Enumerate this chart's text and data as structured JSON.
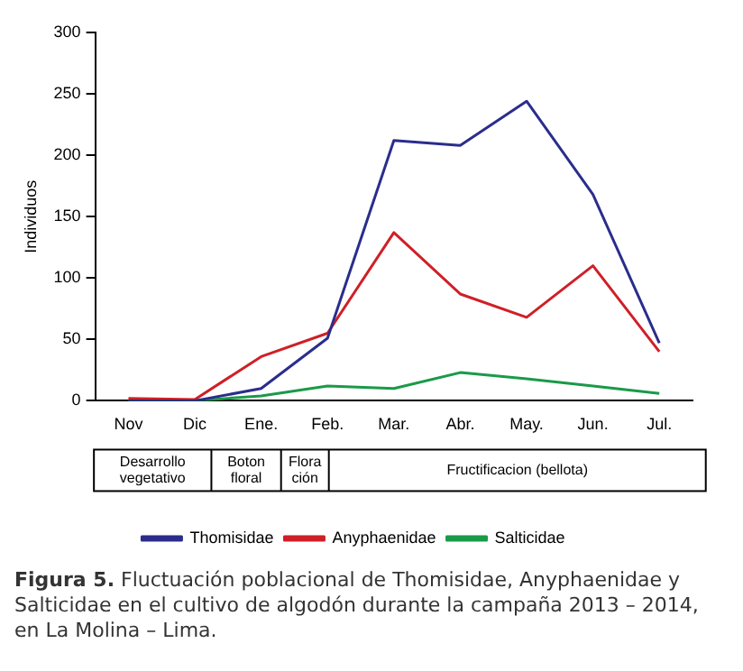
{
  "chart_data": {
    "type": "line",
    "ylabel": "Individuos",
    "categories": [
      "Nov",
      "Dic",
      "Ene.",
      "Feb.",
      "Mar.",
      "Abr.",
      "May.",
      "Jun.",
      "Jul."
    ],
    "series": [
      {
        "name": "Thomisidae",
        "color": "#2b2d8c",
        "values": [
          0,
          0,
          10,
          51,
          212,
          208,
          244,
          168,
          47
        ]
      },
      {
        "name": "Anyphaenidae",
        "color": "#d01f27",
        "values": [
          2,
          1,
          36,
          55,
          137,
          87,
          68,
          110,
          40
        ]
      },
      {
        "name": "Salticidae",
        "color": "#1a9a48",
        "values": [
          0,
          0,
          4,
          12,
          10,
          23,
          18,
          12,
          6
        ]
      }
    ],
    "ylim": [
      0,
      300
    ],
    "yticks": [
      0,
      50,
      100,
      150,
      200,
      250,
      300
    ],
    "grid": false,
    "legend": "bottom",
    "marker": "none",
    "line_style": "solid",
    "annotations": [
      "Desarrollo vegetativo",
      "Boton floral",
      "Floración",
      "Fructificacion (bellota)",
      "Figura 5. Fluctuación poblacional de Thomisidae, Anyphaenidae y Salticidae en el cultivo de algodón durante la campaña 2013 – 2014, en La Molina – Lima."
    ]
  }
}
